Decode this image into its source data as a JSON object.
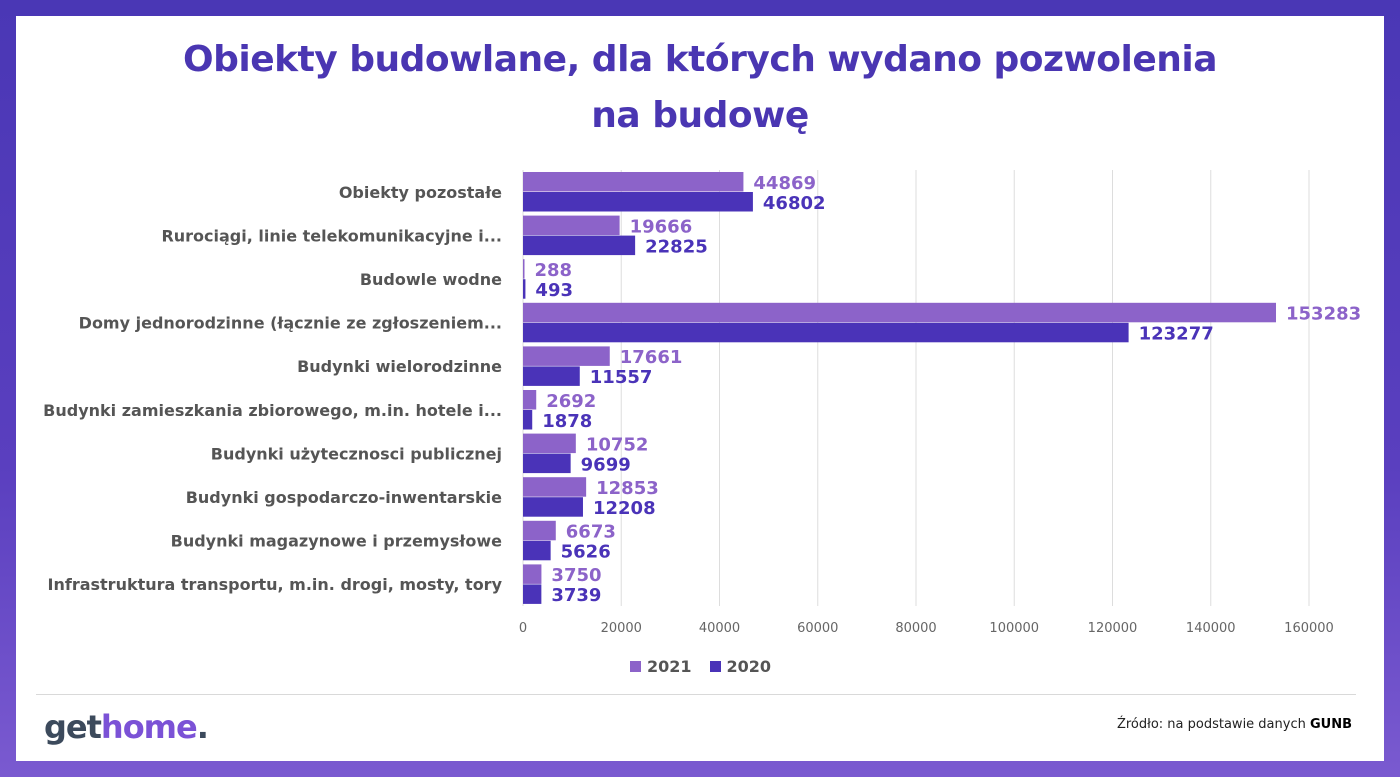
{
  "title_line1": "Obiekty budowlane, dla których wydano pozwolenia",
  "title_line2": "na budowę",
  "chart_data": {
    "type": "bar",
    "orientation": "horizontal",
    "categories": [
      "Obiekty pozostałe",
      "Rurociągi, linie telekomunikacyjne i...",
      "Budowle wodne",
      "Domy jednorodzinne (łącznie ze zgłoszeniem...",
      "Budynki wielorodzinne",
      "Budynki zamieszkania zbiorowego, m.in. hotele i...",
      "Budynki użytecznosci publicznej",
      "Budynki gospodarczo-inwentarskie",
      "Budynki magazynowe i przemysłowe",
      "Infrastruktura transportu, m.in. drogi, mosty, tory"
    ],
    "series": [
      {
        "name": "2021",
        "color": "#8c63c9",
        "values": [
          44869,
          19666,
          288,
          153283,
          17661,
          2692,
          10752,
          12853,
          6673,
          3750
        ]
      },
      {
        "name": "2020",
        "color": "#4a33b8",
        "values": [
          46802,
          22825,
          493,
          123277,
          11557,
          1878,
          9699,
          12208,
          5626,
          3739
        ]
      }
    ],
    "xlim": [
      0,
      160000
    ],
    "xticks": [
      0,
      20000,
      40000,
      60000,
      80000,
      100000,
      120000,
      140000,
      160000
    ],
    "grid": true,
    "legend_position": "bottom"
  },
  "legend": [
    {
      "label": "2021",
      "color": "#8c63c9"
    },
    {
      "label": "2020",
      "color": "#4a33b8"
    }
  ],
  "logo": {
    "part1": "get",
    "part2": "home",
    "part3": "."
  },
  "source": {
    "prefix": "Źródło: na podstawie danych ",
    "bold": "GUNB"
  }
}
